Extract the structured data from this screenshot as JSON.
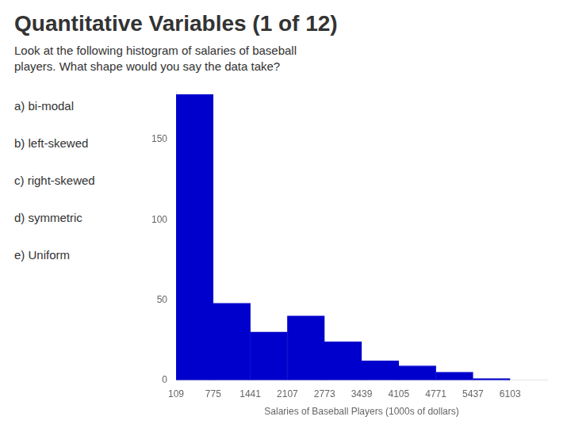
{
  "chart_data": {
    "type": "histogram",
    "title": "Quantitative Variables (1 of 12)",
    "subtitle": "Look at the following histogram of salaries of baseball\nplayers. What shape would you say the data take?",
    "annotations": [
      "a)  bi-modal",
      "b)  left-skewed",
      "c)  right-skewed",
      "d)  symmetric",
      "e)  Uniform"
    ],
    "bins": [
      109,
      775,
      1441,
      2107,
      2773,
      3439,
      4105,
      4771,
      5437,
      6103
    ],
    "values": [
      178,
      48,
      30,
      40,
      24,
      12,
      9,
      5,
      1
    ],
    "color": "#0000CC",
    "x_label": "Salaries of Baseball Players (1000s of dollars)",
    "xlim": [
      109,
      6769
    ],
    "xticks": [
      109,
      775,
      1441,
      2107,
      2773,
      3439,
      4105,
      4771,
      5437,
      6103
    ],
    "ylim": [
      0,
      180
    ],
    "yticks": [
      0,
      50,
      100,
      150
    ],
    "grid": false
  }
}
